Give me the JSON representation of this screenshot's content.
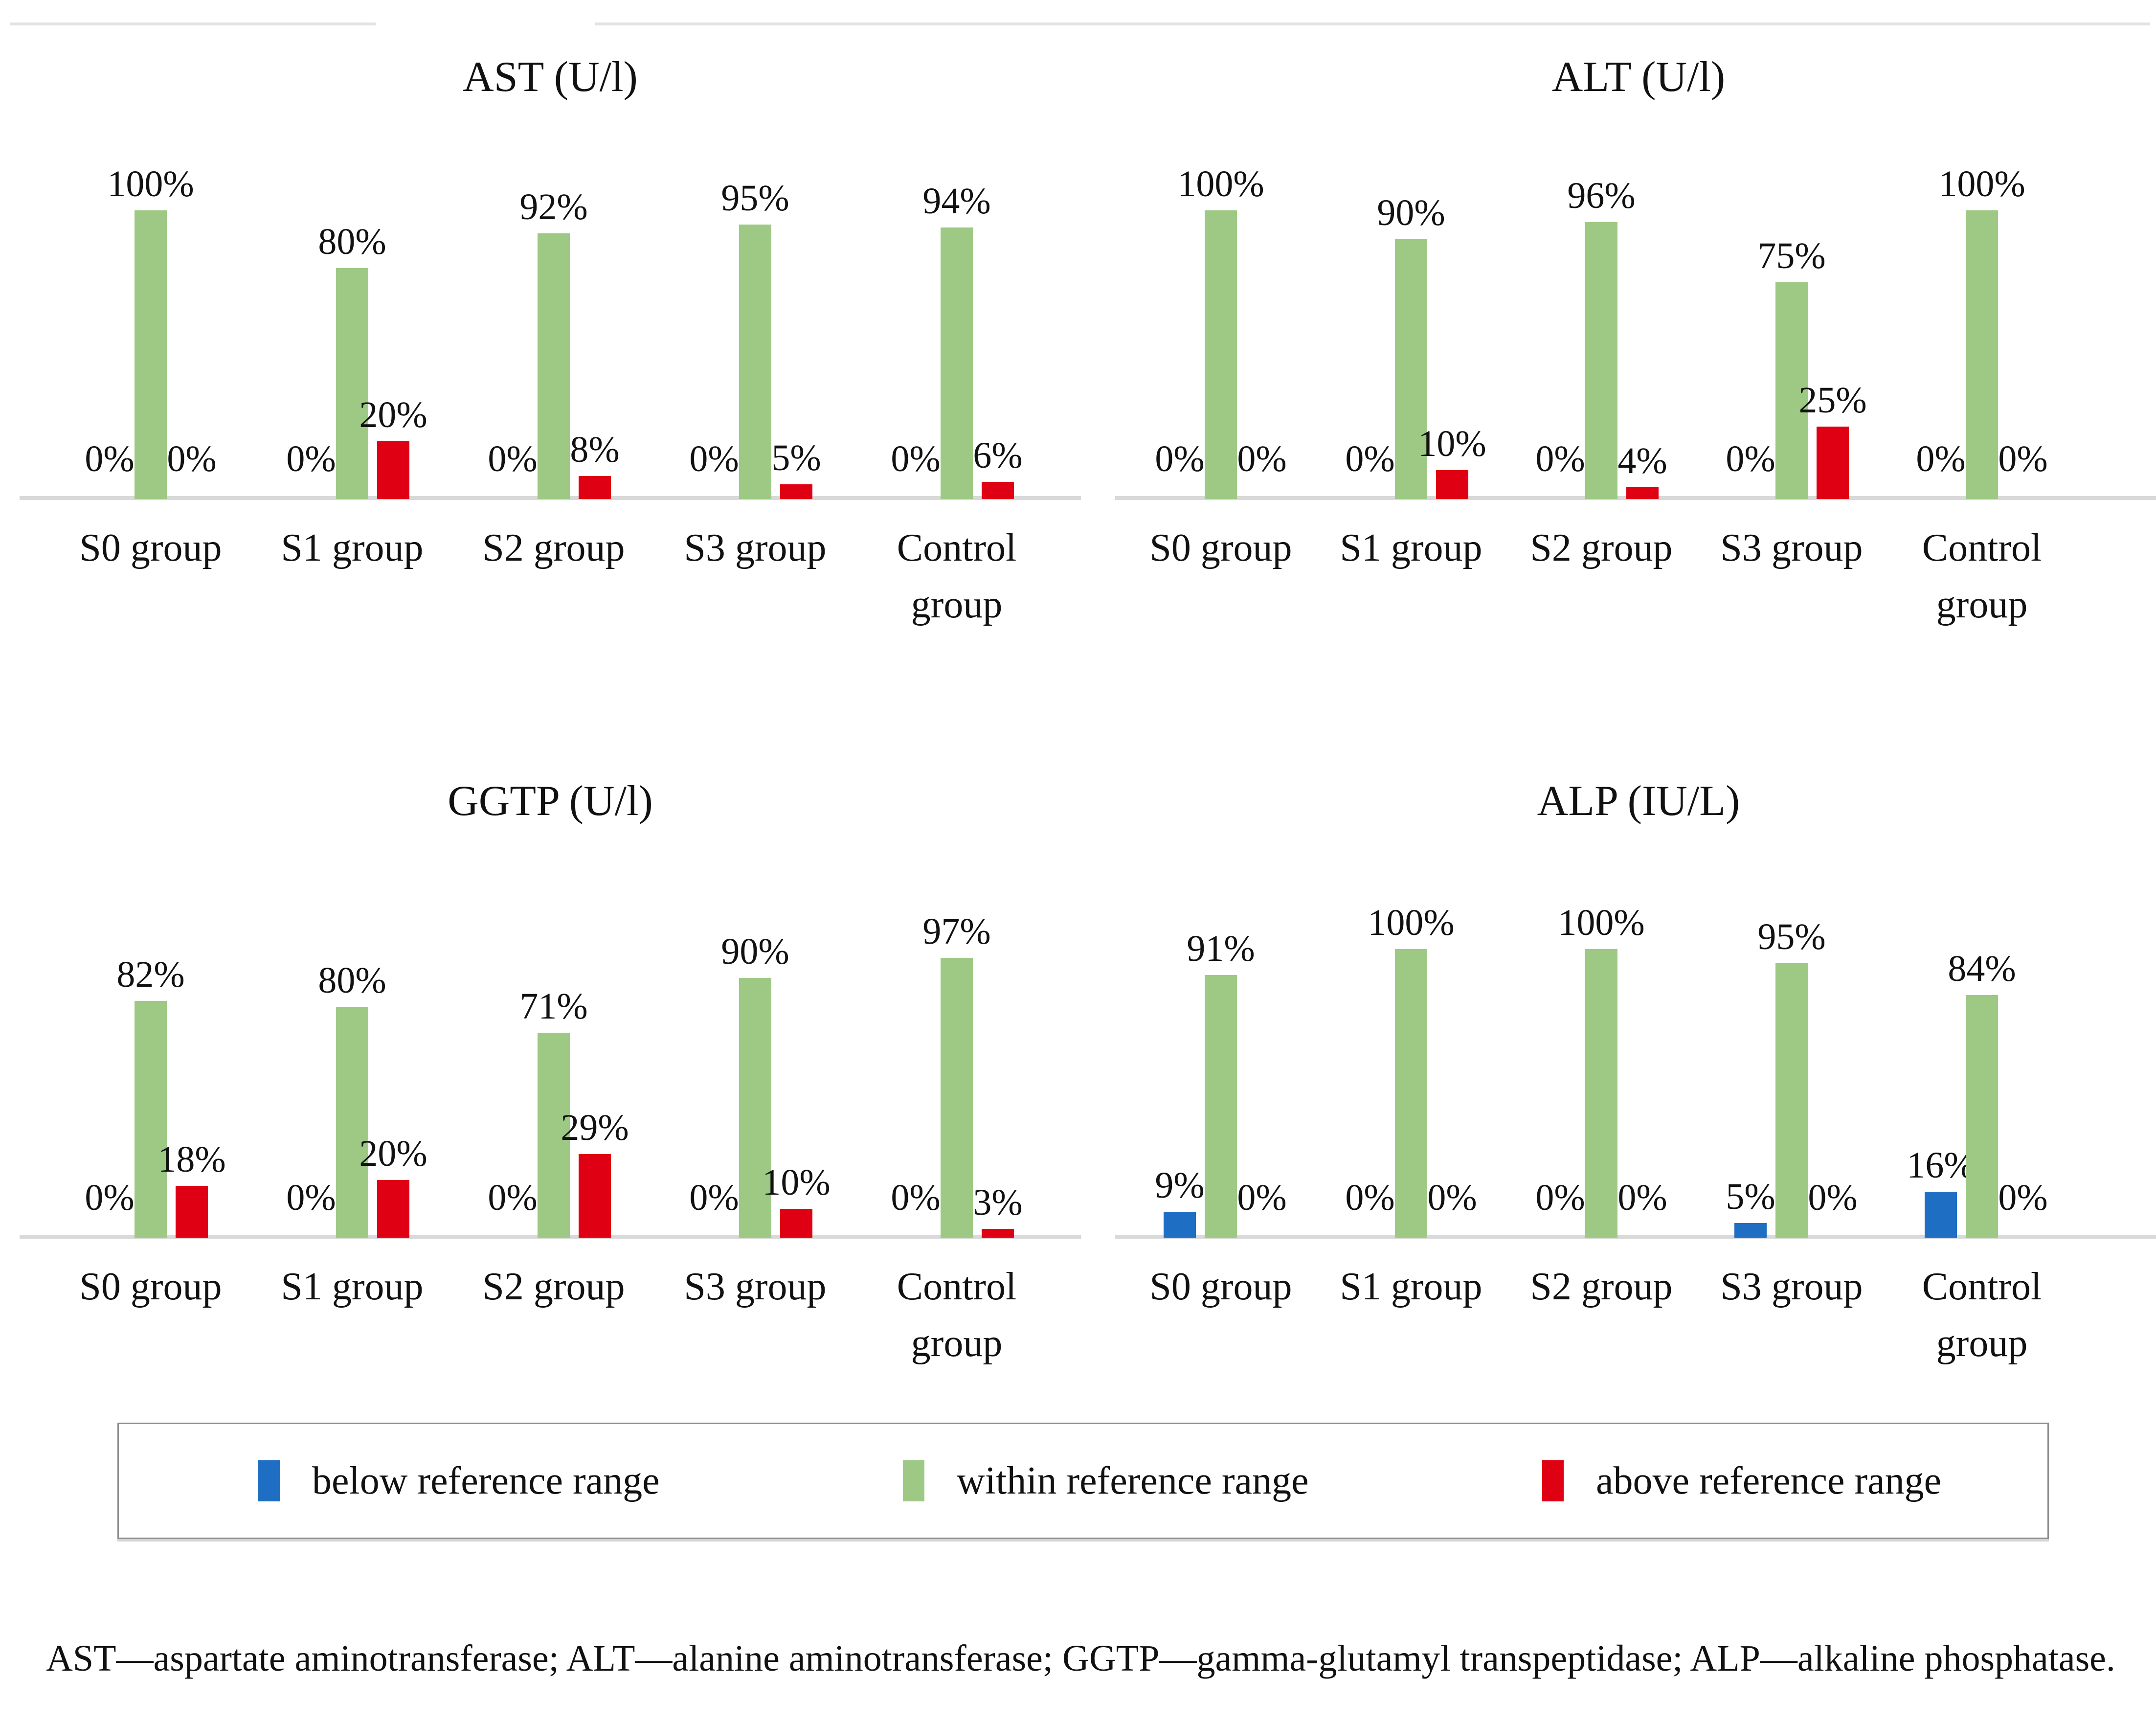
{
  "figure": {
    "legend": {
      "items": [
        {
          "key": "below",
          "label": "below reference range",
          "color": "#1E6FC4"
        },
        {
          "key": "within",
          "label": "within reference range",
          "color": "#9DC984"
        },
        {
          "key": "above",
          "label": "above reference range",
          "color": "#DF0013"
        }
      ]
    },
    "caption": "AST—aspartate aminotransferase; ALT—alanine aminotransferase; GGTP—gamma-glutamyl transpeptidase; ALP—alkaline phosphatase."
  },
  "chart_data": [
    {
      "type": "bar",
      "title": "AST (U/l)",
      "categories": [
        "S0 group",
        "S1 group",
        "S2 group",
        "S3 group",
        "Control group"
      ],
      "series": [
        {
          "name": "below reference range",
          "key": "below",
          "values": [
            0,
            0,
            0,
            0,
            0
          ]
        },
        {
          "name": "within reference range",
          "key": "within",
          "values": [
            100,
            80,
            92,
            95,
            94
          ]
        },
        {
          "name": "above reference range",
          "key": "above",
          "values": [
            0,
            20,
            8,
            5,
            6
          ]
        }
      ],
      "value_suffix": "%",
      "xlabel": "",
      "ylabel": "",
      "ylim": [
        0,
        120
      ],
      "grid": false,
      "legend_position": "shared-bottom",
      "data_labels": "outside-end"
    },
    {
      "type": "bar",
      "title": "ALT (U/l)",
      "categories": [
        "S0 group",
        "S1 group",
        "S2 group",
        "S3 group",
        "Control group"
      ],
      "series": [
        {
          "name": "below reference range",
          "key": "below",
          "values": [
            0,
            0,
            0,
            0,
            0
          ]
        },
        {
          "name": "within reference range",
          "key": "within",
          "values": [
            100,
            90,
            96,
            75,
            100
          ]
        },
        {
          "name": "above reference range",
          "key": "above",
          "values": [
            0,
            10,
            4,
            25,
            0
          ]
        }
      ],
      "value_suffix": "%",
      "xlabel": "",
      "ylabel": "",
      "ylim": [
        0,
        120
      ],
      "grid": false,
      "legend_position": "shared-bottom",
      "data_labels": "outside-end"
    },
    {
      "type": "bar",
      "title": "GGTP (U/l)",
      "categories": [
        "S0 group",
        "S1 group",
        "S2 group",
        "S3 group",
        "Control group"
      ],
      "series": [
        {
          "name": "below reference range",
          "key": "below",
          "values": [
            0,
            0,
            0,
            0,
            0
          ]
        },
        {
          "name": "within reference range",
          "key": "within",
          "values": [
            82,
            80,
            71,
            90,
            97
          ]
        },
        {
          "name": "above reference range",
          "key": "above",
          "values": [
            18,
            20,
            29,
            10,
            3
          ]
        }
      ],
      "value_suffix": "%",
      "xlabel": "",
      "ylabel": "",
      "ylim": [
        0,
        120
      ],
      "grid": false,
      "legend_position": "shared-bottom",
      "data_labels": "outside-end"
    },
    {
      "type": "bar",
      "title": "ALP (IU/L)",
      "categories": [
        "S0 group",
        "S1 group",
        "S2 group",
        "S3 group",
        "Control group"
      ],
      "series": [
        {
          "name": "below reference range",
          "key": "below",
          "values": [
            9,
            0,
            0,
            5,
            16
          ]
        },
        {
          "name": "within reference range",
          "key": "within",
          "values": [
            91,
            100,
            100,
            95,
            84
          ]
        },
        {
          "name": "above reference range",
          "key": "above",
          "values": [
            0,
            0,
            0,
            0,
            0
          ]
        }
      ],
      "value_suffix": "%",
      "xlabel": "",
      "ylabel": "",
      "ylim": [
        0,
        120
      ],
      "grid": false,
      "legend_position": "shared-bottom",
      "data_labels": "outside-end"
    }
  ]
}
